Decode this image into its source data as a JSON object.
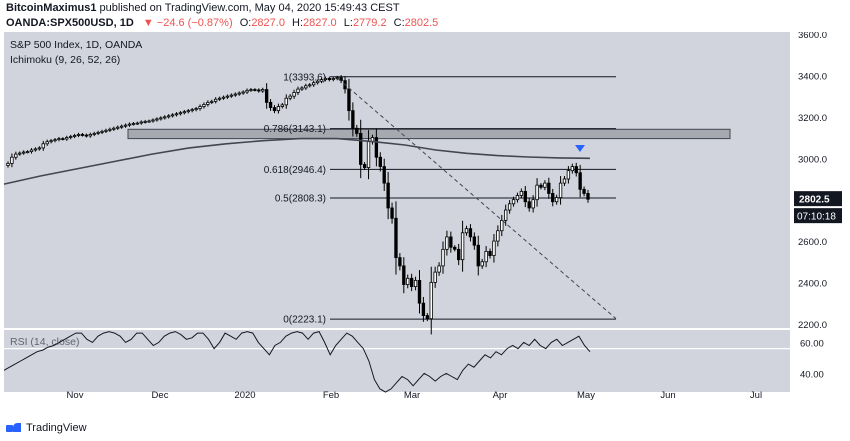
{
  "header": {
    "author": "BitcoinMaximus1",
    "published": "published on TradingView.com, May 04, 2020 15:49:43 CEST",
    "symbol": "OANDA:SPX500USD, 1D",
    "change": "−24.6 (−0.87%)",
    "open_label": "O:",
    "open_value": "2827.0",
    "high_label": "H:",
    "high_value": "2827.0",
    "low_label": "L:",
    "low_value": "2779.2",
    "close_label": "C:",
    "close_value": "2802.5"
  },
  "chart_data": {
    "type": "candlestick",
    "title": "S&P 500 Index, 1D, OANDA",
    "indicator": "Ichimoku (9, 26, 52, 26)",
    "x_ticks": [
      "Nov",
      "Dec",
      "2020",
      "Feb",
      "Mar",
      "Apr",
      "May",
      "Jun",
      "Jul"
    ],
    "y_ticks": [
      "3600.0",
      "3400.0",
      "3200.0",
      "3000.0",
      "2800.0",
      "2600.0",
      "2400.0",
      "2200.0"
    ],
    "ylim": [
      2180,
      3610
    ],
    "price_label": "2802.5",
    "countdown_label": "07:10:18",
    "fib_levels": [
      {
        "label": "1(3393.6)",
        "value": 3393.6
      },
      {
        "label": "0.786(3143.1)",
        "value": 3143.1
      },
      {
        "label": "0.618(2946.4)",
        "value": 2946.4
      },
      {
        "label": "0.5(2808.3)",
        "value": 2808.3
      },
      {
        "label": "0(2223.1)",
        "value": 2223.1
      }
    ],
    "resistance_zone": [
      3095,
      3140
    ],
    "moving_average": [
      {
        "t": 0,
        "v": 2875
      },
      {
        "t": 30,
        "v": 2915
      },
      {
        "t": 60,
        "v": 2950
      },
      {
        "t": 90,
        "v": 2985
      },
      {
        "t": 120,
        "v": 3020
      },
      {
        "t": 150,
        "v": 3050
      },
      {
        "t": 180,
        "v": 3070
      },
      {
        "t": 210,
        "v": 3085
      },
      {
        "t": 240,
        "v": 3095
      },
      {
        "t": 270,
        "v": 3095
      },
      {
        "t": 300,
        "v": 3080
      },
      {
        "t": 325,
        "v": 3064
      },
      {
        "t": 350,
        "v": 3040
      },
      {
        "t": 375,
        "v": 3024
      },
      {
        "t": 400,
        "v": 3013
      },
      {
        "t": 425,
        "v": 3006
      },
      {
        "t": 450,
        "v": 3002
      },
      {
        "t": 475,
        "v": 3000
      }
    ],
    "closes": [
      2975,
      3005,
      3020,
      3025,
      3030,
      3032,
      3040,
      3045,
      3050,
      3070,
      3080,
      3085,
      3090,
      3095,
      3093,
      3100,
      3105,
      3110,
      3115,
      3112,
      3108,
      3115,
      3120,
      3125,
      3130,
      3135,
      3140,
      3145,
      3150,
      3155,
      3160,
      3165,
      3168,
      3170,
      3175,
      3178,
      3180,
      3185,
      3190,
      3195,
      3200,
      3205,
      3210,
      3215,
      3220,
      3225,
      3230,
      3235,
      3240,
      3250,
      3260,
      3270,
      3275,
      3285,
      3290,
      3295,
      3300,
      3305,
      3310,
      3315,
      3320,
      3328,
      3332,
      3330,
      3325,
      3332,
      3270,
      3245,
      3230,
      3250,
      3258,
      3290,
      3300,
      3318,
      3334,
      3340,
      3350,
      3355,
      3365,
      3372,
      3380,
      3386,
      3380,
      3385,
      3390,
      3375,
      3335,
      3230,
      3145,
      3120,
      2970,
      2955,
      3080,
      3100,
      3005,
      2960,
      2880,
      2760,
      2710,
      2520,
      2480,
      2390,
      2420,
      2380,
      2410,
      2300,
      2240,
      2225,
      2400,
      2450,
      2480,
      2560,
      2620,
      2570,
      2560,
      2510,
      2640,
      2660,
      2620,
      2580,
      2480,
      2500,
      2550,
      2530,
      2600,
      2650,
      2700,
      2750,
      2780,
      2800,
      2820,
      2840,
      2790,
      2760,
      2800,
      2870,
      2860,
      2880,
      2830,
      2790,
      2810,
      2880,
      2900,
      2940,
      2960,
      2930,
      2850,
      2830,
      2802
    ],
    "descending_trendline": {
      "from": [
        3385,
        "Feb 19"
      ],
      "to": [
        2225,
        "May 12"
      ]
    },
    "rsi": {
      "label": "RSI (14, close)",
      "y_ticks": [
        "60.00",
        "40.00"
      ],
      "ylim": [
        28,
        68
      ],
      "level": 56,
      "values": [
        42,
        44,
        46,
        48,
        50,
        52,
        54,
        55,
        57,
        58,
        60,
        62,
        64,
        66,
        66,
        62,
        60,
        64,
        66,
        67,
        66,
        64,
        60,
        62,
        66,
        66,
        62,
        58,
        60,
        64,
        66,
        67,
        65,
        62,
        63,
        66,
        66,
        62,
        56,
        60,
        66,
        64,
        62,
        66,
        67,
        66,
        60,
        56,
        52,
        58,
        60,
        64,
        66,
        67,
        66,
        62,
        66,
        67,
        60,
        52,
        58,
        62,
        66,
        64,
        60,
        56,
        48,
        36,
        30,
        28,
        30,
        34,
        38,
        36,
        32,
        36,
        40,
        38,
        35,
        38,
        40,
        38,
        36,
        42,
        46,
        44,
        48,
        52,
        50,
        54,
        52,
        56,
        58,
        56,
        60,
        58,
        62,
        58,
        56,
        60,
        62,
        58,
        60,
        62,
        64,
        58,
        54
      ]
    }
  },
  "brand": {
    "name": "TradingView",
    "accent": "#2962ff"
  },
  "colors": {
    "bg": "#d1d4dc",
    "bull": "#ffffff",
    "bear": "#000000",
    "ma": "#434651",
    "fib": "#131722",
    "trend": "#434651",
    "marker": "#2962ff",
    "rsi_line": "#131722"
  }
}
